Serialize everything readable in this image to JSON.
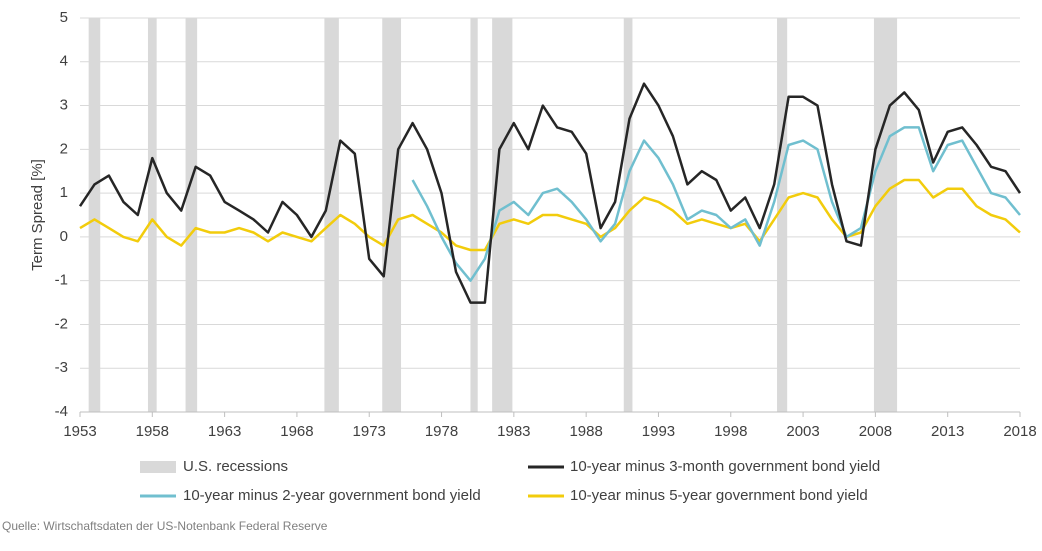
{
  "chart_data": {
    "type": "line",
    "y_label": "Term Spread [%]",
    "source": "Quelle: Wirtschaftsdaten der US-Notenbank Federal Reserve",
    "xlim": [
      1953,
      2018
    ],
    "xticks": [
      1953,
      1958,
      1963,
      1968,
      1973,
      1978,
      1983,
      1988,
      1993,
      1998,
      2003,
      2008,
      2013,
      2018
    ],
    "ylim": [
      -4,
      5
    ],
    "yticks": [
      -4,
      -3,
      -2,
      -1,
      0,
      1,
      2,
      3,
      4,
      5
    ],
    "grid": true,
    "recessions": {
      "name": "U.S. recessions",
      "color": "#d9d9d9",
      "spans": [
        [
          1953.6,
          1954.4
        ],
        [
          1957.7,
          1958.3
        ],
        [
          1960.3,
          1961.1
        ],
        [
          1969.9,
          1970.9
        ],
        [
          1973.9,
          1975.2
        ],
        [
          1980.0,
          1980.5
        ],
        [
          1981.5,
          1982.9
        ],
        [
          1990.6,
          1991.2
        ],
        [
          2001.2,
          2001.9
        ],
        [
          2007.9,
          2009.5
        ]
      ]
    },
    "x": [
      1953,
      1954,
      1955,
      1956,
      1957,
      1958,
      1959,
      1960,
      1961,
      1962,
      1963,
      1964,
      1965,
      1966,
      1967,
      1968,
      1969,
      1970,
      1971,
      1972,
      1973,
      1974,
      1975,
      1976,
      1977,
      1978,
      1979,
      1980,
      1981,
      1982,
      1983,
      1984,
      1985,
      1986,
      1987,
      1988,
      1989,
      1990,
      1991,
      1992,
      1993,
      1994,
      1995,
      1996,
      1997,
      1998,
      1999,
      2000,
      2001,
      2002,
      2003,
      2004,
      2005,
      2006,
      2007,
      2008,
      2009,
      2010,
      2011,
      2012,
      2013,
      2014,
      2015,
      2016,
      2017,
      2018
    ],
    "series": [
      {
        "name": "10-year minus 3-month government bond yield",
        "color": "#262626",
        "values": [
          0.7,
          1.2,
          1.4,
          0.8,
          0.5,
          1.8,
          1.0,
          0.6,
          1.6,
          1.4,
          0.8,
          0.6,
          0.4,
          0.1,
          0.8,
          0.5,
          0.0,
          0.6,
          2.2,
          1.9,
          -0.5,
          -0.9,
          2.0,
          2.6,
          2.0,
          1.0,
          -0.8,
          -1.5,
          -1.5,
          2.0,
          2.6,
          2.0,
          3.0,
          2.5,
          2.4,
          1.9,
          0.2,
          0.8,
          2.7,
          3.5,
          3.0,
          2.3,
          1.2,
          1.5,
          1.3,
          0.6,
          0.9,
          0.2,
          1.2,
          3.2,
          3.2,
          3.0,
          1.2,
          -0.1,
          -0.2,
          2.0,
          3.0,
          3.3,
          2.9,
          1.7,
          2.4,
          2.5,
          2.1,
          1.6,
          1.5,
          1.0
        ]
      },
      {
        "name": "10-year minus 2-year government bond yield",
        "color": "#70bfcf",
        "values": [
          null,
          null,
          null,
          null,
          null,
          null,
          null,
          null,
          null,
          null,
          null,
          null,
          null,
          null,
          null,
          null,
          null,
          null,
          null,
          null,
          null,
          null,
          null,
          1.3,
          0.7,
          0.0,
          -0.6,
          -1.0,
          -0.5,
          0.6,
          0.8,
          0.5,
          1.0,
          1.1,
          0.8,
          0.4,
          -0.1,
          0.3,
          1.5,
          2.2,
          1.8,
          1.2,
          0.4,
          0.6,
          0.5,
          0.2,
          0.4,
          -0.2,
          0.8,
          2.1,
          2.2,
          2.0,
          0.8,
          0.0,
          0.2,
          1.5,
          2.3,
          2.5,
          2.5,
          1.5,
          2.1,
          2.2,
          1.6,
          1.0,
          0.9,
          0.5
        ]
      },
      {
        "name": "10-year minus 5-year government bond yield",
        "color": "#f2cc0c",
        "values": [
          0.2,
          0.4,
          0.2,
          0.0,
          -0.1,
          0.4,
          0.0,
          -0.2,
          0.2,
          0.1,
          0.1,
          0.2,
          0.1,
          -0.1,
          0.1,
          0.0,
          -0.1,
          0.2,
          0.5,
          0.3,
          0.0,
          -0.2,
          0.4,
          0.5,
          0.3,
          0.1,
          -0.2,
          -0.3,
          -0.3,
          0.3,
          0.4,
          0.3,
          0.5,
          0.5,
          0.4,
          0.3,
          0.0,
          0.2,
          0.6,
          0.9,
          0.8,
          0.6,
          0.3,
          0.4,
          0.3,
          0.2,
          0.3,
          -0.1,
          0.4,
          0.9,
          1.0,
          0.9,
          0.4,
          0.0,
          0.1,
          0.7,
          1.1,
          1.3,
          1.3,
          0.9,
          1.1,
          1.1,
          0.7,
          0.5,
          0.4,
          0.1
        ]
      }
    ]
  }
}
